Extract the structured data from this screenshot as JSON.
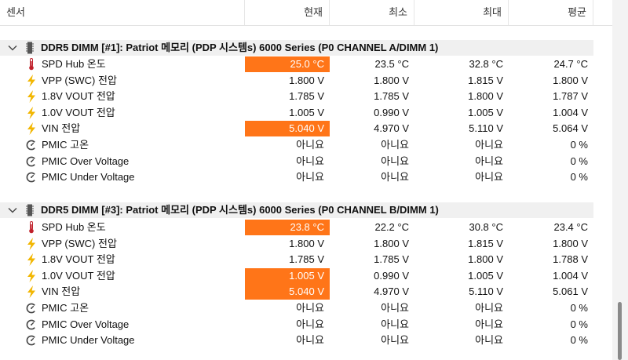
{
  "columns": {
    "sensor": "센서",
    "current": "현재",
    "min": "최소",
    "max": "최대",
    "avg": "평균"
  },
  "colors": {
    "alert": "#ff7518",
    "bolt": "#f2b600",
    "thermo": "#c0202a",
    "chip": "#555555"
  },
  "groups": [
    {
      "title": "DDR5 DIMM [#1]: Patriot 메모리 (PDP 시스템s) 6000 Series (P0 CHANNEL A/DIMM 1)",
      "rows": [
        {
          "icon": "thermometer-icon",
          "label": "SPD Hub 온도",
          "current": "25.0 °C",
          "min": "23.5 °C",
          "max": "32.8 °C",
          "avg": "24.7 °C",
          "alert": true
        },
        {
          "icon": "lightning-icon",
          "label": "VPP (SWC) 전압",
          "current": "1.800 V",
          "min": "1.800 V",
          "max": "1.815 V",
          "avg": "1.800 V",
          "alert": false
        },
        {
          "icon": "lightning-icon",
          "label": "1.8V VOUT 전압",
          "current": "1.785 V",
          "min": "1.785 V",
          "max": "1.800 V",
          "avg": "1.787 V",
          "alert": false
        },
        {
          "icon": "lightning-icon",
          "label": "1.0V VOUT 전압",
          "current": "1.005 V",
          "min": "0.990 V",
          "max": "1.005 V",
          "avg": "1.004 V",
          "alert": false
        },
        {
          "icon": "lightning-icon",
          "label": "VIN 전압",
          "current": "5.040 V",
          "min": "4.970 V",
          "max": "5.110 V",
          "avg": "5.064 V",
          "alert": true
        },
        {
          "icon": "gauge-icon",
          "label": "PMIC 고온",
          "current": "아니요",
          "min": "아니요",
          "max": "아니요",
          "avg": "0 %",
          "alert": false
        },
        {
          "icon": "gauge-icon",
          "label": "PMIC Over Voltage",
          "current": "아니요",
          "min": "아니요",
          "max": "아니요",
          "avg": "0 %",
          "alert": false
        },
        {
          "icon": "gauge-icon",
          "label": "PMIC Under Voltage",
          "current": "아니요",
          "min": "아니요",
          "max": "아니요",
          "avg": "0 %",
          "alert": false
        }
      ]
    },
    {
      "title": "DDR5 DIMM [#3]: Patriot 메모리 (PDP 시스템s) 6000 Series (P0 CHANNEL B/DIMM 1)",
      "rows": [
        {
          "icon": "thermometer-icon",
          "label": "SPD Hub 온도",
          "current": "23.8 °C",
          "min": "22.2 °C",
          "max": "30.8 °C",
          "avg": "23.4 °C",
          "alert": true
        },
        {
          "icon": "lightning-icon",
          "label": "VPP (SWC) 전압",
          "current": "1.800 V",
          "min": "1.800 V",
          "max": "1.815 V",
          "avg": "1.800 V",
          "alert": false
        },
        {
          "icon": "lightning-icon",
          "label": "1.8V VOUT 전압",
          "current": "1.785 V",
          "min": "1.785 V",
          "max": "1.800 V",
          "avg": "1.788 V",
          "alert": false
        },
        {
          "icon": "lightning-icon",
          "label": "1.0V VOUT 전압",
          "current": "1.005 V",
          "min": "0.990 V",
          "max": "1.005 V",
          "avg": "1.004 V",
          "alert": true
        },
        {
          "icon": "lightning-icon",
          "label": "VIN 전압",
          "current": "5.040 V",
          "min": "4.970 V",
          "max": "5.110 V",
          "avg": "5.061 V",
          "alert": true
        },
        {
          "icon": "gauge-icon",
          "label": "PMIC 고온",
          "current": "아니요",
          "min": "아니요",
          "max": "아니요",
          "avg": "0 %",
          "alert": false
        },
        {
          "icon": "gauge-icon",
          "label": "PMIC Over Voltage",
          "current": "아니요",
          "min": "아니요",
          "max": "아니요",
          "avg": "0 %",
          "alert": false
        },
        {
          "icon": "gauge-icon",
          "label": "PMIC Under Voltage",
          "current": "아니요",
          "min": "아니요",
          "max": "아니요",
          "avg": "0 %",
          "alert": false
        }
      ]
    }
  ]
}
